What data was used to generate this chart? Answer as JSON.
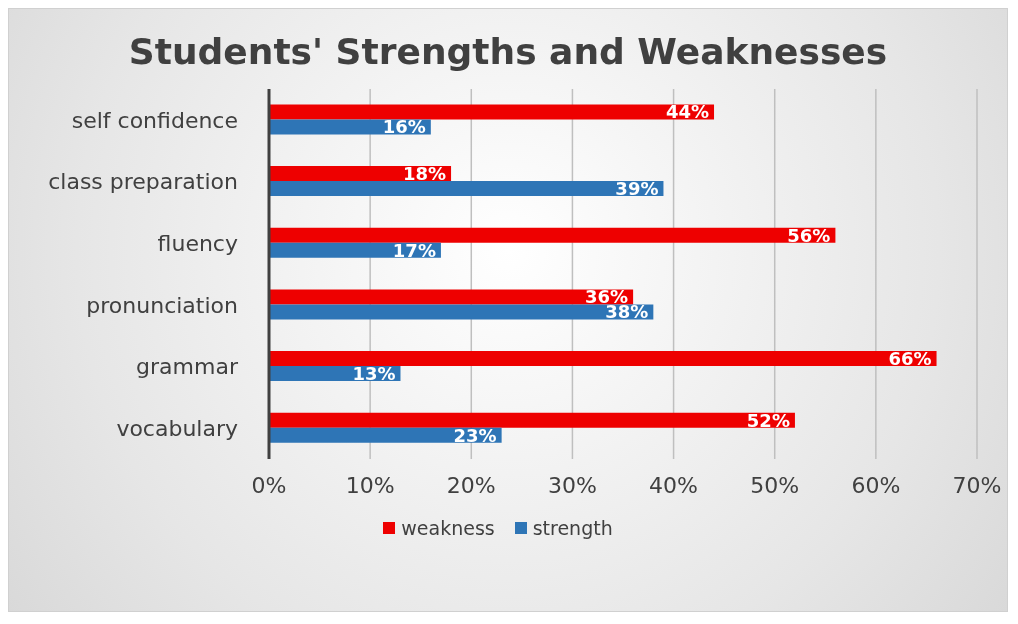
{
  "chart_data": {
    "type": "bar",
    "orientation": "horizontal",
    "title": "Students' Strengths and Weaknesses",
    "categories": [
      "self confidence",
      "class preparation",
      "fluency",
      "pronunciation",
      "grammar",
      "vocabulary"
    ],
    "series": [
      {
        "name": "weakness",
        "color": "#ee0000",
        "values": [
          44,
          18,
          56,
          36,
          66,
          52
        ],
        "value_labels": [
          "44%",
          "18%",
          "56%",
          "36%",
          "66%",
          "52%"
        ]
      },
      {
        "name": "strength",
        "color": "#2e75b6",
        "values": [
          16,
          39,
          17,
          38,
          13,
          23
        ],
        "value_labels": [
          "16%",
          "39%",
          "17%",
          "38%",
          "13%",
          "23%"
        ]
      }
    ],
    "xlim": [
      0,
      70
    ],
    "xticks": [
      {
        "value": 0,
        "label": "0%"
      },
      {
        "value": 10,
        "label": "10%"
      },
      {
        "value": 20,
        "label": "20%"
      },
      {
        "value": 30,
        "label": "30%"
      },
      {
        "value": 40,
        "label": "40%"
      },
      {
        "value": 50,
        "label": "50%"
      },
      {
        "value": 60,
        "label": "60%"
      },
      {
        "value": 70,
        "label": "70%"
      }
    ],
    "grid": "x",
    "legend": "bottom"
  }
}
